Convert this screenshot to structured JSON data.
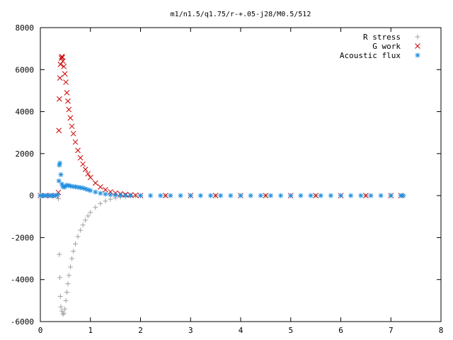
{
  "chart_data": {
    "type": "scatter",
    "title": "m1/n1.5/q1.75/r-+.05-j28/M0.5/512",
    "xlabel": "",
    "ylabel": "",
    "xlim": [
      0,
      8
    ],
    "ylim": [
      -6000,
      8000
    ],
    "x_ticks": [
      0,
      1,
      2,
      3,
      4,
      5,
      6,
      7,
      8
    ],
    "y_ticks": [
      -6000,
      -4000,
      -2000,
      0,
      2000,
      4000,
      6000,
      8000
    ],
    "grid": false,
    "legend_position": "top-right",
    "series": [
      {
        "name": "R stress",
        "marker": "plus",
        "color": "#a0a0a0",
        "points": [
          [
            0.0,
            0
          ],
          [
            0.1,
            0
          ],
          [
            0.2,
            0
          ],
          [
            0.3,
            0
          ],
          [
            0.36,
            -150
          ],
          [
            0.38,
            -2800
          ],
          [
            0.39,
            -3900
          ],
          [
            0.4,
            -4800
          ],
          [
            0.41,
            -5300
          ],
          [
            0.43,
            -5500
          ],
          [
            0.45,
            -5650
          ],
          [
            0.47,
            -5600
          ],
          [
            0.49,
            -5400
          ],
          [
            0.51,
            -5000
          ],
          [
            0.53,
            -4600
          ],
          [
            0.55,
            -4200
          ],
          [
            0.57,
            -3800
          ],
          [
            0.6,
            -3400
          ],
          [
            0.63,
            -3000
          ],
          [
            0.66,
            -2650
          ],
          [
            0.7,
            -2300
          ],
          [
            0.75,
            -1950
          ],
          [
            0.8,
            -1650
          ],
          [
            0.85,
            -1400
          ],
          [
            0.9,
            -1170
          ],
          [
            0.95,
            -970
          ],
          [
            1.0,
            -800
          ],
          [
            1.1,
            -560
          ],
          [
            1.2,
            -380
          ],
          [
            1.3,
            -260
          ],
          [
            1.4,
            -170
          ],
          [
            1.5,
            -110
          ],
          [
            1.6,
            -70
          ],
          [
            1.7,
            -40
          ],
          [
            1.8,
            -20
          ],
          [
            1.9,
            -10
          ],
          [
            2.0,
            0
          ],
          [
            2.5,
            0
          ],
          [
            3.0,
            0
          ],
          [
            3.5,
            0
          ],
          [
            4.0,
            0
          ],
          [
            4.5,
            0
          ],
          [
            5.0,
            0
          ],
          [
            5.5,
            0
          ],
          [
            6.0,
            0
          ],
          [
            6.5,
            0
          ],
          [
            7.0,
            0
          ],
          [
            7.2,
            0
          ]
        ]
      },
      {
        "name": "G work",
        "marker": "cross",
        "color": "#cc0000",
        "points": [
          [
            0.0,
            0
          ],
          [
            0.1,
            0
          ],
          [
            0.2,
            0
          ],
          [
            0.3,
            0
          ],
          [
            0.36,
            150
          ],
          [
            0.37,
            3100
          ],
          [
            0.38,
            4600
          ],
          [
            0.39,
            5600
          ],
          [
            0.4,
            6250
          ],
          [
            0.42,
            6550
          ],
          [
            0.43,
            6620
          ],
          [
            0.44,
            6580
          ],
          [
            0.45,
            6400
          ],
          [
            0.47,
            6150
          ],
          [
            0.49,
            5800
          ],
          [
            0.51,
            5400
          ],
          [
            0.53,
            4900
          ],
          [
            0.55,
            4500
          ],
          [
            0.57,
            4100
          ],
          [
            0.6,
            3700
          ],
          [
            0.63,
            3300
          ],
          [
            0.66,
            2950
          ],
          [
            0.7,
            2550
          ],
          [
            0.75,
            2150
          ],
          [
            0.8,
            1800
          ],
          [
            0.85,
            1500
          ],
          [
            0.9,
            1250
          ],
          [
            0.95,
            1040
          ],
          [
            1.0,
            860
          ],
          [
            1.1,
            600
          ],
          [
            1.2,
            410
          ],
          [
            1.3,
            280
          ],
          [
            1.4,
            180
          ],
          [
            1.5,
            120
          ],
          [
            1.6,
            80
          ],
          [
            1.7,
            50
          ],
          [
            1.8,
            30
          ],
          [
            1.9,
            15
          ],
          [
            2.0,
            0
          ],
          [
            2.5,
            0
          ],
          [
            3.0,
            0
          ],
          [
            3.5,
            0
          ],
          [
            4.0,
            0
          ],
          [
            4.5,
            0
          ],
          [
            5.0,
            0
          ],
          [
            5.5,
            0
          ],
          [
            6.0,
            0
          ],
          [
            6.5,
            0
          ],
          [
            7.0,
            0
          ],
          [
            7.2,
            0
          ]
        ]
      },
      {
        "name": "Acoustic flux",
        "marker": "star",
        "color": "#1f8fe0",
        "points": [
          [
            0.0,
            0
          ],
          [
            0.05,
            0
          ],
          [
            0.1,
            0
          ],
          [
            0.15,
            0
          ],
          [
            0.2,
            0
          ],
          [
            0.25,
            0
          ],
          [
            0.3,
            0
          ],
          [
            0.35,
            40
          ],
          [
            0.37,
            700
          ],
          [
            0.38,
            1450
          ],
          [
            0.39,
            1550
          ],
          [
            0.41,
            1000
          ],
          [
            0.43,
            550
          ],
          [
            0.45,
            420
          ],
          [
            0.48,
            400
          ],
          [
            0.5,
            450
          ],
          [
            0.53,
            500
          ],
          [
            0.56,
            480
          ],
          [
            0.6,
            460
          ],
          [
            0.65,
            430
          ],
          [
            0.7,
            420
          ],
          [
            0.75,
            400
          ],
          [
            0.8,
            380
          ],
          [
            0.85,
            360
          ],
          [
            0.9,
            320
          ],
          [
            0.95,
            280
          ],
          [
            1.0,
            240
          ],
          [
            1.1,
            170
          ],
          [
            1.2,
            110
          ],
          [
            1.3,
            70
          ],
          [
            1.4,
            40
          ],
          [
            1.5,
            25
          ],
          [
            1.6,
            12
          ],
          [
            1.7,
            5
          ],
          [
            1.8,
            0
          ],
          [
            2.0,
            0
          ],
          [
            2.2,
            0
          ],
          [
            2.4,
            0
          ],
          [
            2.6,
            0
          ],
          [
            2.8,
            0
          ],
          [
            3.0,
            0
          ],
          [
            3.2,
            0
          ],
          [
            3.4,
            0
          ],
          [
            3.6,
            0
          ],
          [
            3.8,
            0
          ],
          [
            4.0,
            0
          ],
          [
            4.2,
            0
          ],
          [
            4.4,
            0
          ],
          [
            4.6,
            0
          ],
          [
            4.8,
            0
          ],
          [
            5.0,
            0
          ],
          [
            5.2,
            0
          ],
          [
            5.4,
            0
          ],
          [
            5.6,
            0
          ],
          [
            5.8,
            0
          ],
          [
            6.0,
            0
          ],
          [
            6.2,
            0
          ],
          [
            6.4,
            0
          ],
          [
            6.6,
            0
          ],
          [
            6.8,
            0
          ],
          [
            7.0,
            0
          ],
          [
            7.2,
            0
          ],
          [
            7.25,
            0
          ]
        ]
      }
    ]
  }
}
